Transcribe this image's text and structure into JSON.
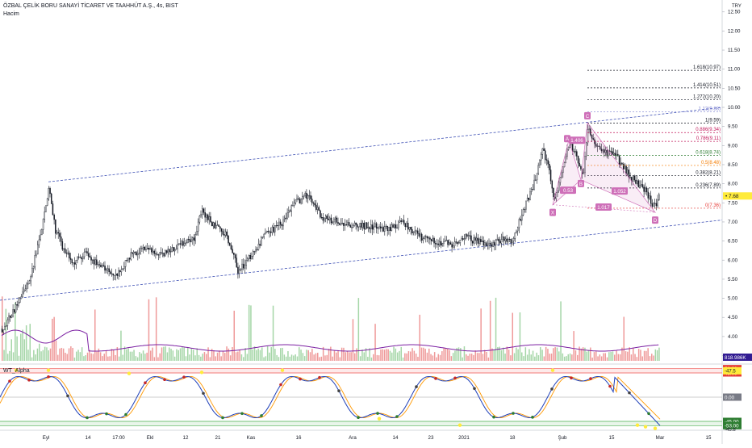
{
  "header": {
    "symbol_title": "ÖZBAL ÇELİK BORU SANAYİ TİCARET VE TAAHHÜT A.Ş., 4s, BIST",
    "volume_label": "Hacim",
    "currency": "TRY"
  },
  "price_axis": {
    "ticks": [
      "12.50",
      "12.00",
      "11.50",
      "11.00",
      "10.50",
      "10.00",
      "9.50",
      "9.00",
      "8.50",
      "8.00",
      "7.50",
      "7.00",
      "6.50",
      "6.00",
      "5.50",
      "5.00",
      "4.50",
      "4.00",
      "3.50"
    ],
    "ylim": [
      3.3,
      12.6
    ],
    "current_price": "7.68",
    "volume_value": "818.986K"
  },
  "time_axis": {
    "labels": [
      "Eyl",
      "14",
      "17:00",
      "Ekl",
      "12",
      "21",
      "Kas",
      "16",
      "Ara",
      "14",
      "23",
      "2021",
      "18",
      "Şub",
      "15",
      "Mar",
      "15"
    ]
  },
  "fib_levels": [
    {
      "label": "1.618(10.97)",
      "value": 10.97,
      "color": "#131722"
    },
    {
      "label": "1.414(10.51)",
      "value": 10.51,
      "color": "#131722"
    },
    {
      "label": "1.272(10.20)",
      "value": 10.2,
      "color": "#131722"
    },
    {
      "label": "1.13(9.88)",
      "value": 9.88,
      "color": "#7b7fd0"
    },
    {
      "label": "1(9.59)",
      "value": 9.59,
      "color": "#131722"
    },
    {
      "label": "0.886(9.34)",
      "value": 9.34,
      "color": "#c2185b"
    },
    {
      "label": "0.786(9.11)",
      "value": 9.11,
      "color": "#c2185b"
    },
    {
      "label": "0.618(8.74)",
      "value": 8.74,
      "color": "#2e7d32"
    },
    {
      "label": "0.5(8.48)",
      "value": 8.48,
      "color": "#f57c00"
    },
    {
      "label": "0.382(8.21)",
      "value": 8.21,
      "color": "#131722"
    },
    {
      "label": "0.236(7.89)",
      "value": 7.89,
      "color": "#131722"
    },
    {
      "label": "0(7.36)",
      "value": 7.36,
      "color": "#e53935"
    }
  ],
  "harmonic": {
    "points": {
      "X": "X",
      "A": "A",
      "B": "B",
      "C": "C",
      "D": "D"
    },
    "ratios": {
      "xab": "1.406",
      "abc": "0.53",
      "bcd": "1.052",
      "xad": "1.017"
    }
  },
  "oscillator": {
    "title": "WT_Alpha",
    "axis_labels": [
      "53.00",
      "45.00",
      "0.00",
      "-45.00",
      "-53.00"
    ],
    "current_values": [
      "-47.5",
      "-45.8"
    ]
  },
  "colors": {
    "up": "#26a69a",
    "down": "#ef5350",
    "vol_up": "#a5d6a7",
    "vol_down": "#ef9a9a",
    "channel": "#3f51b5",
    "volume_ma": "#7b1fa2",
    "wt1": "#1e3fb8",
    "wt2": "#ff9800",
    "harmonic": "#ce6fb8"
  }
}
